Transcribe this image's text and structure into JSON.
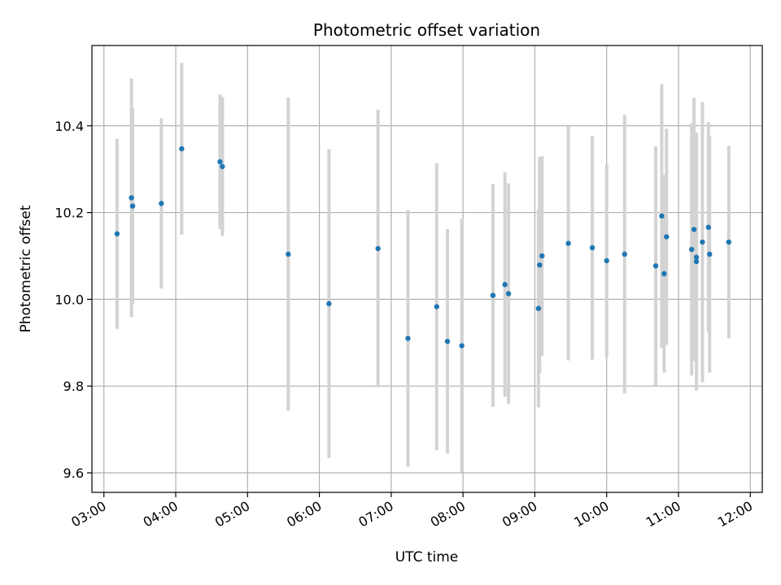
{
  "chart_data": {
    "type": "scatter",
    "title": "Photometric offset variation",
    "xlabel": "UTC time",
    "ylabel": "Photometric offset",
    "x_unit": "UTC time of day (HH:MM)",
    "xlim": [
      "02:50",
      "12:10"
    ],
    "ylim": [
      9.555,
      10.585
    ],
    "x_ticks": [
      "03:00",
      "04:00",
      "05:00",
      "06:00",
      "07:00",
      "08:00",
      "09:00",
      "10:00",
      "11:00",
      "12:00"
    ],
    "y_ticks": [
      9.6,
      9.8,
      10.0,
      10.2,
      10.4
    ],
    "y_tick_labels": [
      "9.6",
      "9.8",
      "10.0",
      "10.2",
      "10.4"
    ],
    "grid": true,
    "colors": {
      "points": "#1f77b4",
      "error_bars": "#d3d3d3",
      "grid": "#b0b0b0"
    },
    "series": [
      {
        "points": [
          {
            "x": "03:11",
            "y": 10.151,
            "err": 0.219
          },
          {
            "x": "03:23",
            "y": 10.234,
            "err": 0.275
          },
          {
            "x": "03:24",
            "y": 10.215,
            "err": 0.226
          },
          {
            "x": "03:48",
            "y": 10.221,
            "err": 0.196
          },
          {
            "x": "04:05",
            "y": 10.347,
            "err": 0.198
          },
          {
            "x": "04:37",
            "y": 10.317,
            "err": 0.155
          },
          {
            "x": "04:39",
            "y": 10.306,
            "err": 0.16
          },
          {
            "x": "05:34",
            "y": 10.104,
            "err": 0.361
          },
          {
            "x": "06:08",
            "y": 9.99,
            "err": 0.356
          },
          {
            "x": "06:49",
            "y": 10.117,
            "err": 0.32
          },
          {
            "x": "07:14",
            "y": 9.91,
            "err": 0.296
          },
          {
            "x": "07:38",
            "y": 9.983,
            "err": 0.331
          },
          {
            "x": "07:47",
            "y": 9.903,
            "err": 0.259
          },
          {
            "x": "07:59",
            "y": 9.893,
            "err": 0.292
          },
          {
            "x": "08:25",
            "y": 10.009,
            "err": 0.257
          },
          {
            "x": "08:35",
            "y": 10.034,
            "err": 0.259
          },
          {
            "x": "08:38",
            "y": 10.013,
            "err": 0.254
          },
          {
            "x": "09:03",
            "y": 9.979,
            "err": 0.228
          },
          {
            "x": "09:04",
            "y": 10.079,
            "err": 0.249
          },
          {
            "x": "09:06",
            "y": 10.1,
            "err": 0.23
          },
          {
            "x": "09:28",
            "y": 10.129,
            "err": 0.27
          },
          {
            "x": "09:48",
            "y": 10.119,
            "err": 0.258
          },
          {
            "x": "10:00",
            "y": 10.089,
            "err": 0.222
          },
          {
            "x": "10:15",
            "y": 10.104,
            "err": 0.321
          },
          {
            "x": "10:41",
            "y": 10.077,
            "err": 0.276
          },
          {
            "x": "10:46",
            "y": 10.192,
            "err": 0.304
          },
          {
            "x": "10:48",
            "y": 10.059,
            "err": 0.228
          },
          {
            "x": "10:50",
            "y": 10.144,
            "err": 0.249
          },
          {
            "x": "11:11",
            "y": 10.115,
            "err": 0.291
          },
          {
            "x": "11:13",
            "y": 10.161,
            "err": 0.303
          },
          {
            "x": "11:15",
            "y": 10.097,
            "err": 0.287
          },
          {
            "x": "11:15",
            "y": 10.087,
            "err": 0.297
          },
          {
            "x": "11:20",
            "y": 10.132,
            "err": 0.323
          },
          {
            "x": "11:25",
            "y": 10.166,
            "err": 0.242
          },
          {
            "x": "11:26",
            "y": 10.104,
            "err": 0.273
          },
          {
            "x": "11:42",
            "y": 10.132,
            "err": 0.222
          }
        ]
      }
    ]
  }
}
